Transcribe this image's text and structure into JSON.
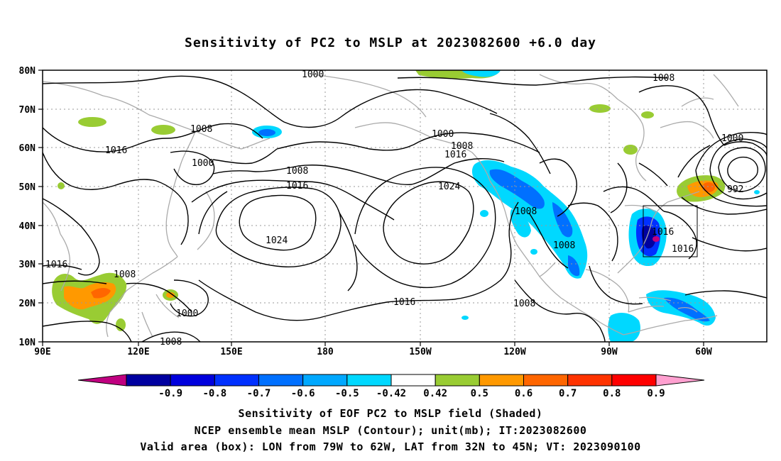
{
  "title": "Sensitivity of PC2 to MSLP at 2023082600 +6.0 day",
  "lat_labels": [
    "80N",
    "70N",
    "60N",
    "50N",
    "40N",
    "30N",
    "20N",
    "10N"
  ],
  "lon_labels": [
    "90E",
    "120E",
    "150E",
    "180",
    "150W",
    "120W",
    "90W",
    "60W"
  ],
  "contour_labels": [
    {
      "text": "1000"
    },
    {
      "text": "1008"
    },
    {
      "text": "1016"
    },
    {
      "text": "1008"
    },
    {
      "text": "1000"
    },
    {
      "text": "1008"
    },
    {
      "text": "1016"
    },
    {
      "text": "1024"
    },
    {
      "text": "1016"
    },
    {
      "text": "1000"
    },
    {
      "text": "1008"
    },
    {
      "text": "1016"
    },
    {
      "text": "1024"
    },
    {
      "text": "1008"
    },
    {
      "text": "1008"
    },
    {
      "text": "1016"
    },
    {
      "text": "1016"
    },
    {
      "text": "1000"
    },
    {
      "text": "992"
    },
    {
      "text": "1016"
    },
    {
      "text": "1008"
    },
    {
      "text": "1000"
    },
    {
      "text": "1008"
    },
    {
      "text": "1008"
    }
  ],
  "colorbar": {
    "colors": [
      "#c00080",
      "#0000a0",
      "#0000dd",
      "#0030ff",
      "#0070ff",
      "#00a8ff",
      "#00d8ff",
      "#ffffff",
      "#99cc33",
      "#ff9900",
      "#ff6600",
      "#ff3300",
      "#ff0000",
      "#ffa0d0"
    ],
    "labels": [
      "-0.9",
      "-0.8",
      "-0.7",
      "-0.6",
      "-0.5",
      "-0.42",
      "0.42",
      "0.5",
      "0.6",
      "0.7",
      "0.8",
      "0.9"
    ]
  },
  "captions": {
    "line1": "Sensitivity of EOF PC2 to MSLP field (Shaded)",
    "line2": "NCEP ensemble mean MSLP (Contour); unit(mb); IT:2023082600",
    "line3": "Valid area (box): LON from 79W to 62W, LAT from 32N to 45N; VT: 2023090100"
  }
}
